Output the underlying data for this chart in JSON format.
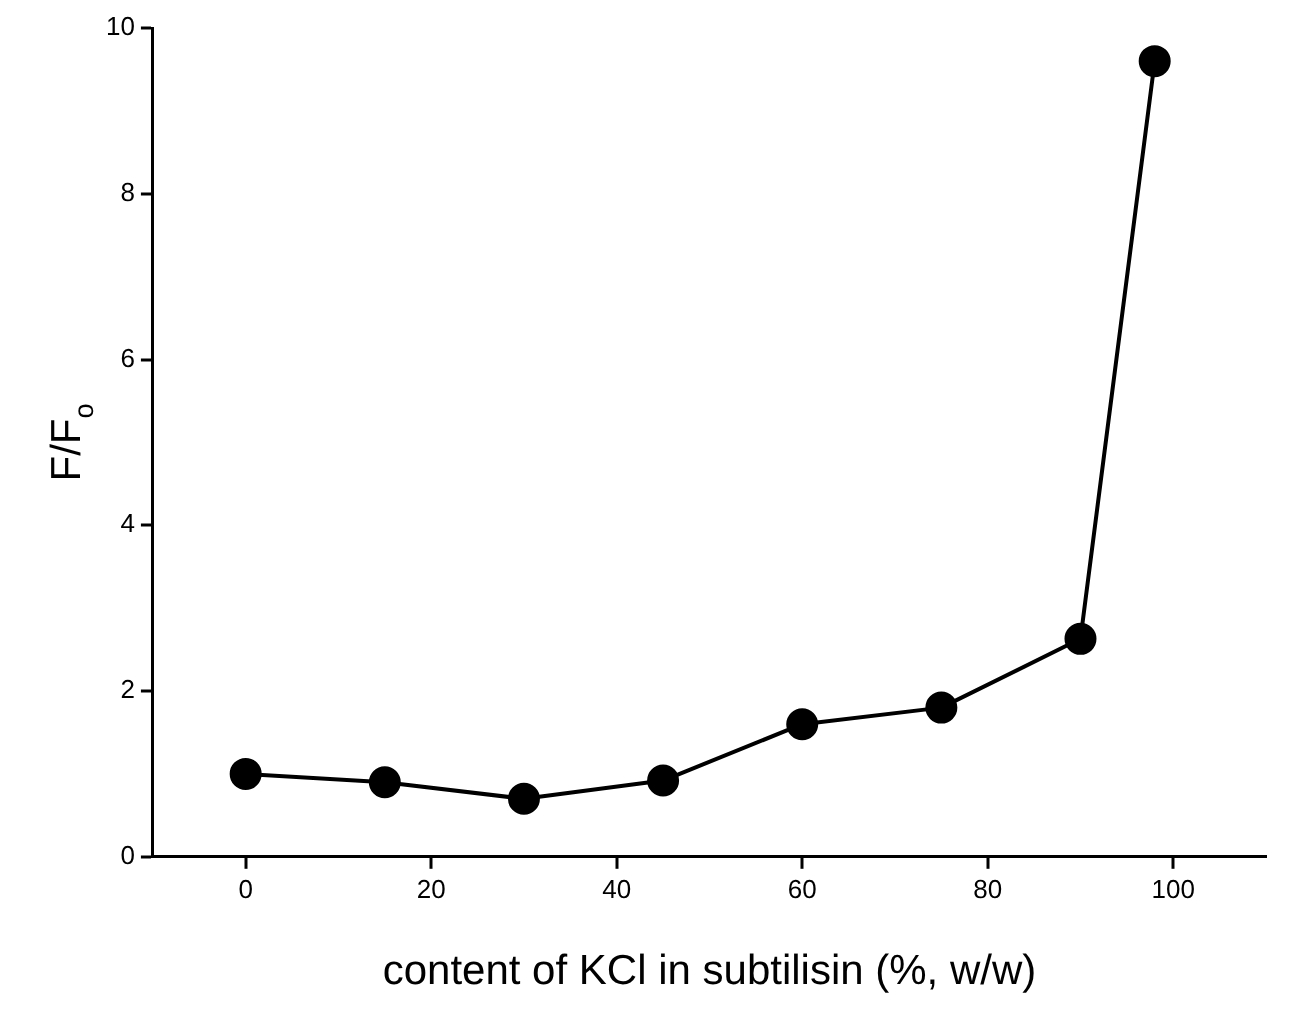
{
  "chart_data": {
    "type": "line",
    "xlabel": "content of KCl in subtilisin (%, w/w)",
    "ylabel": "F/F$_{o}$",
    "x": [
      0,
      15,
      30,
      45,
      60,
      75,
      90,
      98
    ],
    "series": [
      {
        "color": "#000000",
        "values": [
          1.0,
          0.9,
          0.7,
          0.92,
          1.6,
          1.8,
          2.63,
          9.6
        ]
      }
    ],
    "xlim": [
      -10,
      110
    ],
    "xticks": [
      0,
      20,
      40,
      60,
      80,
      100
    ],
    "ylim": [
      0,
      10
    ],
    "yticks": [
      0,
      2,
      4,
      6,
      8,
      10
    ],
    "grid": false,
    "legend": false,
    "marker": "circle",
    "line_style": "solid"
  }
}
